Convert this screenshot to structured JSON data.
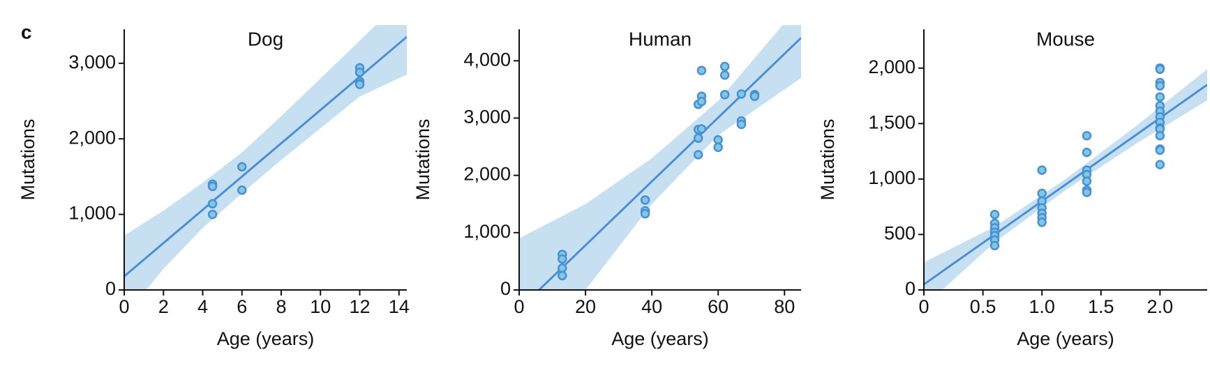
{
  "label": "c",
  "chart_data": [
    {
      "type": "scatter",
      "title": "Dog",
      "xlabel": "Age (years)",
      "ylabel": "Mutations",
      "xlim": [
        0,
        14.4
      ],
      "xticks": [
        0,
        2,
        4,
        6,
        8,
        10,
        12,
        14
      ],
      "ylim": [
        0,
        3450
      ],
      "yticks": [
        0,
        {
          "value": 1000,
          "label": "1,000"
        },
        {
          "value": 2000,
          "label": "2,000"
        },
        {
          "value": 3000,
          "label": "3,000"
        }
      ],
      "color": "#7ec8e3",
      "edge_color": "#4a8fd6",
      "line_color": "#4a8fd6",
      "band_color": "#c6e0f2",
      "x": [
        4.5,
        4.5,
        4.5,
        4.5,
        6,
        6,
        12,
        12,
        12,
        12,
        12
      ],
      "values": [
        1400,
        1370,
        1140,
        1000,
        1630,
        1320,
        2940,
        2880,
        2760,
        2730,
        2720
      ],
      "line": {
        "x": [
          0,
          14.4
        ],
        "values": [
          180,
          3350
        ]
      },
      "band": {
        "x": [
          0,
          2,
          4,
          6,
          8,
          10,
          12,
          14.4
        ],
        "upper": [
          720,
          1050,
          1420,
          1820,
          2300,
          2800,
          3300,
          3900
        ],
        "lower": [
          -360,
          280,
          820,
          1280,
          1720,
          2140,
          2560,
          2850
        ]
      }
    },
    {
      "type": "scatter",
      "title": "Human",
      "xlabel": "Age (years)",
      "ylabel": "Mutations",
      "xlim": [
        0,
        85
      ],
      "xticks": [
        0,
        20,
        40,
        60,
        80
      ],
      "ylim": [
        0,
        4550
      ],
      "yticks": [
        0,
        {
          "value": 1000,
          "label": "1,000"
        },
        {
          "value": 2000,
          "label": "2,000"
        },
        {
          "value": 3000,
          "label": "3,000"
        },
        {
          "value": 4000,
          "label": "4,000"
        }
      ],
      "color": "#7ec8e3",
      "edge_color": "#4a8fd6",
      "line_color": "#4a8fd6",
      "band_color": "#c6e0f2",
      "x": [
        13,
        13,
        13,
        13,
        38,
        38,
        38,
        54,
        54,
        54,
        54,
        55,
        55,
        55,
        55,
        60,
        60,
        62,
        62,
        62,
        67,
        67,
        67,
        71,
        71
      ],
      "values": [
        620,
        540,
        380,
        250,
        1570,
        1380,
        1330,
        3240,
        2800,
        2650,
        2360,
        3830,
        3380,
        3290,
        2810,
        2620,
        2490,
        3900,
        3750,
        3410,
        3420,
        2950,
        2890,
        3410,
        3380
      ],
      "line": {
        "x": [
          6,
          85
        ],
        "values": [
          0,
          4400
        ]
      },
      "band": {
        "x": [
          0,
          20,
          40,
          60,
          85
        ],
        "upper": [
          900,
          1500,
          2300,
          3300,
          5000
        ],
        "lower": [
          -1500,
          0,
          1500,
          2700,
          3700
        ]
      }
    },
    {
      "type": "scatter",
      "title": "Mouse",
      "xlabel": "Age (years)",
      "ylabel": "Mutations",
      "xlim": [
        0,
        2.4
      ],
      "xticks": [
        0,
        0.5,
        {
          "value": 1,
          "label": "1.0"
        },
        1.5,
        {
          "value": 2,
          "label": "2.0"
        }
      ],
      "ylim": [
        0,
        2350
      ],
      "yticks": [
        0,
        500,
        {
          "value": 1000,
          "label": "1,000"
        },
        {
          "value": 1500,
          "label": "1,500"
        },
        {
          "value": 2000,
          "label": "2,000"
        }
      ],
      "color": "#7ec8e3",
      "edge_color": "#4a8fd6",
      "line_color": "#4a8fd6",
      "band_color": "#c6e0f2",
      "x": [
        0.6,
        0.6,
        0.6,
        0.6,
        0.6,
        0.6,
        0.6,
        1,
        1,
        1,
        1,
        1,
        1,
        1,
        1.38,
        1.38,
        1.38,
        1.38,
        1.38,
        1.38,
        1.38,
        2,
        2,
        2,
        2,
        2,
        2,
        2,
        2,
        2,
        2,
        2,
        2,
        2,
        2,
        2
      ],
      "values": [
        680,
        600,
        560,
        520,
        490,
        450,
        400,
        1080,
        870,
        800,
        740,
        690,
        650,
        610,
        1390,
        1240,
        1080,
        1040,
        980,
        900,
        880,
        2000,
        1990,
        1870,
        1840,
        1740,
        1660,
        1610,
        1560,
        1510,
        1460,
        1450,
        1390,
        1270,
        1260,
        1130
      ],
      "line": {
        "x": [
          0,
          2.4
        ],
        "values": [
          50,
          1850
        ]
      },
      "band": {
        "x": [
          0,
          0.6,
          1.2,
          1.8,
          2.4
        ],
        "upper": [
          250,
          570,
          1000,
          1480,
          1990
        ],
        "lower": [
          -150,
          430,
          900,
          1320,
          1710
        ]
      }
    }
  ]
}
